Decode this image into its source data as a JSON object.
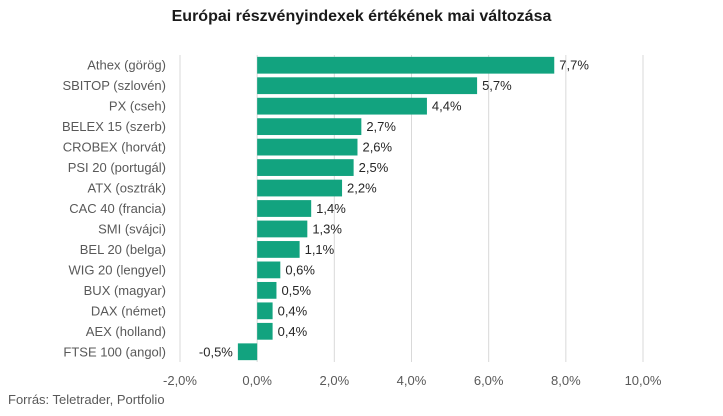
{
  "chart_data": {
    "type": "bar",
    "orientation": "horizontal",
    "title": "Európai részvényindexek értékének mai változása",
    "categories": [
      "Athex (görög)",
      "SBITOP (szlovén)",
      "PX (cseh)",
      "BELEX 15 (szerb)",
      "CROBEX (horvát)",
      "PSI 20 (portugál)",
      "ATX (osztrák)",
      "CAC 40 (francia)",
      "SMI (svájci)",
      "BEL 20 (belga)",
      "WIG 20 (lengyel)",
      "BUX (magyar)",
      "DAX (német)",
      "AEX (holland)",
      "FTSE 100 (angol)"
    ],
    "values": [
      7.7,
      5.7,
      4.4,
      2.7,
      2.6,
      2.5,
      2.2,
      1.4,
      1.3,
      1.1,
      0.6,
      0.5,
      0.4,
      0.4,
      -0.5
    ],
    "value_labels": [
      "7,7%",
      "5,7%",
      "4,4%",
      "2,7%",
      "2,6%",
      "2,5%",
      "2,2%",
      "1,4%",
      "1,3%",
      "1,1%",
      "0,6%",
      "0,5%",
      "0,4%",
      "0,4%",
      "-0,5%"
    ],
    "x_ticks": [
      -2,
      0,
      2,
      4,
      6,
      8,
      10
    ],
    "x_tick_labels": [
      "-2,0%",
      "0,0%",
      "2,0%",
      "4,0%",
      "6,0%",
      "8,0%",
      "10,0%"
    ],
    "xlim": [
      -2,
      10
    ],
    "grid": "vertical",
    "bar_color": "#12a37f",
    "source": "Forrás: Teletrader, Portfolio"
  }
}
